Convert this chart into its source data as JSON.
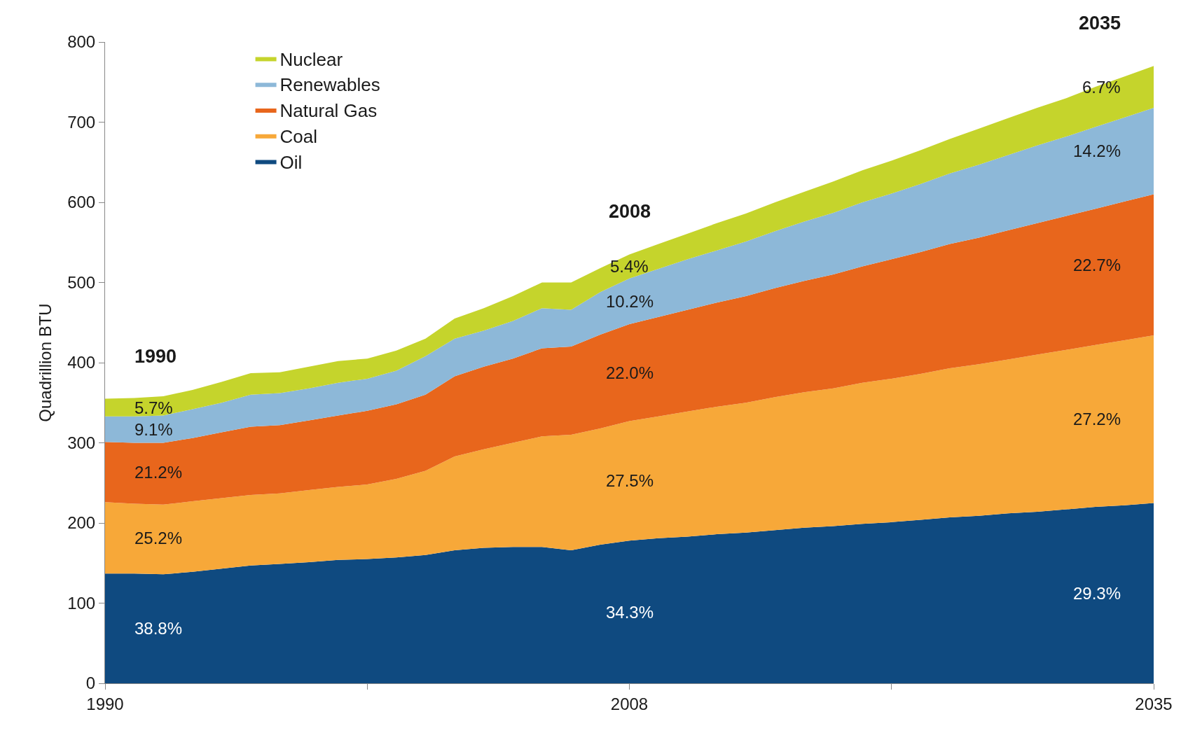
{
  "chart_data": {
    "type": "area",
    "stacked": true,
    "ylabel": "Quadrillion BTU",
    "categories": [
      "1990",
      null,
      null,
      null,
      null,
      null,
      null,
      null,
      null,
      null,
      null,
      null,
      null,
      null,
      null,
      null,
      null,
      null,
      "2008",
      null,
      null,
      null,
      null,
      null,
      null,
      null,
      null,
      null,
      null,
      null,
      null,
      null,
      null,
      null,
      null,
      null,
      "2035"
    ],
    "series": [
      {
        "name": "Oil",
        "color": "#0f4a80",
        "values": [
          137,
          137,
          136,
          139,
          143,
          147,
          149,
          151,
          154,
          155,
          157,
          160,
          166,
          169,
          170,
          170,
          166,
          173,
          178,
          181,
          183,
          186,
          188,
          191,
          194,
          196,
          199,
          201,
          204,
          207,
          209,
          212,
          214,
          217,
          220,
          222,
          225
        ]
      },
      {
        "name": "Coal",
        "color": "#f7a839",
        "values": [
          89,
          87,
          87,
          88,
          88,
          88,
          88,
          90,
          91,
          93,
          98,
          105,
          117,
          123,
          130,
          138,
          144,
          145,
          149,
          152,
          156,
          159,
          162,
          166,
          169,
          172,
          176,
          179,
          182,
          186,
          189,
          192,
          196,
          199,
          202,
          206,
          209
        ]
      },
      {
        "name": "Natural Gas",
        "color": "#e8661c",
        "values": [
          75,
          76,
          77,
          79,
          82,
          85,
          85,
          87,
          89,
          92,
          93,
          95,
          100,
          103,
          105,
          110,
          110,
          117,
          121,
          124,
          127,
          130,
          133,
          136,
          139,
          142,
          145,
          149,
          152,
          155,
          158,
          161,
          164,
          167,
          170,
          173,
          176
        ]
      },
      {
        "name": "Renewables",
        "color": "#8db8d8",
        "values": [
          32,
          33,
          34,
          36,
          37,
          40,
          40,
          40,
          41,
          40,
          42,
          48,
          47,
          45,
          47,
          50,
          46,
          53,
          57,
          60,
          63,
          65,
          68,
          71,
          74,
          77,
          80,
          82,
          85,
          88,
          91,
          94,
          97,
          99,
          102,
          105,
          108
        ]
      },
      {
        "name": "Nuclear",
        "color": "#c5d42c",
        "values": [
          22,
          23,
          24,
          24,
          26,
          27,
          26,
          27,
          27,
          25,
          25,
          22,
          25,
          28,
          31,
          32,
          34,
          30,
          30,
          31,
          32,
          34,
          35,
          36,
          37,
          39,
          40,
          41,
          42,
          43,
          45,
          46,
          47,
          48,
          50,
          51,
          52
        ]
      }
    ],
    "ylim": [
      0,
      800
    ],
    "yticks": [
      0,
      100,
      200,
      300,
      400,
      500,
      600,
      700,
      800
    ],
    "legend": "top left",
    "annotations": [
      "1990",
      "5.7%",
      "9.1%",
      "21.2%",
      "25.2%",
      "38.8%",
      "2008",
      "5.4%",
      "10.2%",
      "22.0%",
      "27.5%",
      "34.3%",
      "2035",
      "6.7%",
      "14.2%",
      "22.7%",
      "27.2%",
      "29.3%"
    ]
  }
}
